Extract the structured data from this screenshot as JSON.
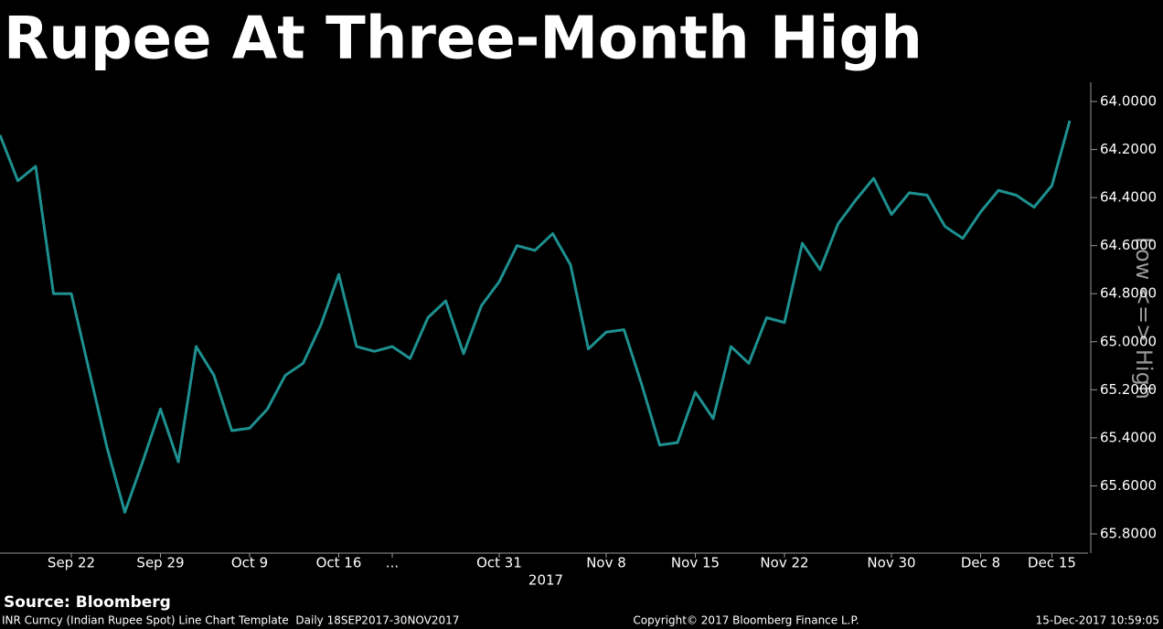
{
  "chart_data": {
    "type": "line",
    "title": "Rupee At Three-Month High",
    "categories": [
      null,
      null,
      null,
      null,
      "Sep 22",
      null,
      null,
      null,
      null,
      "Sep 29",
      null,
      null,
      null,
      null,
      "Oct 9",
      null,
      null,
      null,
      null,
      "Oct 16",
      null,
      null,
      "...",
      null,
      null,
      null,
      null,
      null,
      "Oct 31",
      null,
      null,
      null,
      null,
      null,
      "Nov 8",
      null,
      null,
      null,
      null,
      "Nov 15",
      null,
      null,
      null,
      null,
      "Nov 22",
      null,
      null,
      null,
      null,
      null,
      "Nov 30",
      null,
      null,
      null,
      null,
      "Dec 8",
      null,
      null,
      null,
      "Dec 15",
      null
    ],
    "series": [
      {
        "name": "INR Curncy",
        "color": "#1e9090",
        "values": [
          64.14,
          64.33,
          64.27,
          64.8,
          64.8,
          65.12,
          65.44,
          65.71,
          65.5,
          65.28,
          65.5,
          65.02,
          65.14,
          65.37,
          65.36,
          65.28,
          65.14,
          65.09,
          64.93,
          64.72,
          65.02,
          65.04,
          65.02,
          65.07,
          64.9,
          64.83,
          65.05,
          64.85,
          64.75,
          64.6,
          64.62,
          64.55,
          64.68,
          65.03,
          64.96,
          64.95,
          65.18,
          65.43,
          65.42,
          65.21,
          65.32,
          65.02,
          65.09,
          64.9,
          64.92,
          64.59,
          64.7,
          64.51,
          64.41,
          64.32,
          64.47,
          64.38,
          64.39,
          64.52,
          64.57,
          64.46,
          64.37,
          64.39,
          64.44,
          64.35,
          64.08
        ]
      }
    ],
    "ylim": [
      65.88,
      63.92
    ],
    "yticks": [
      {
        "value": 64.0,
        "label": "64.0000"
      },
      {
        "value": 64.2,
        "label": "64.2000"
      },
      {
        "value": 64.4,
        "label": "64.4000"
      },
      {
        "value": 64.6,
        "label": "64.6000"
      },
      {
        "value": 64.8,
        "label": "64.8000"
      },
      {
        "value": 65.0,
        "label": "65.0000"
      },
      {
        "value": 65.2,
        "label": "65.2000"
      },
      {
        "value": 65.4,
        "label": "65.4000"
      },
      {
        "value": 65.6,
        "label": "65.6000"
      },
      {
        "value": 65.8,
        "label": "65.8000"
      }
    ],
    "y_axis_label": "Low <=> High",
    "x_axis_label": "2017",
    "source": "Source: Bloomberg",
    "footer_left": "INR Curncy (Indian Rupee Spot) Line Chart Template  Daily 18SEP2017-30NOV2017",
    "footer_center": "Copyright© 2017 Bloomberg Finance L.P.",
    "footer_right": "15-Dec-2017 10:59:05"
  }
}
